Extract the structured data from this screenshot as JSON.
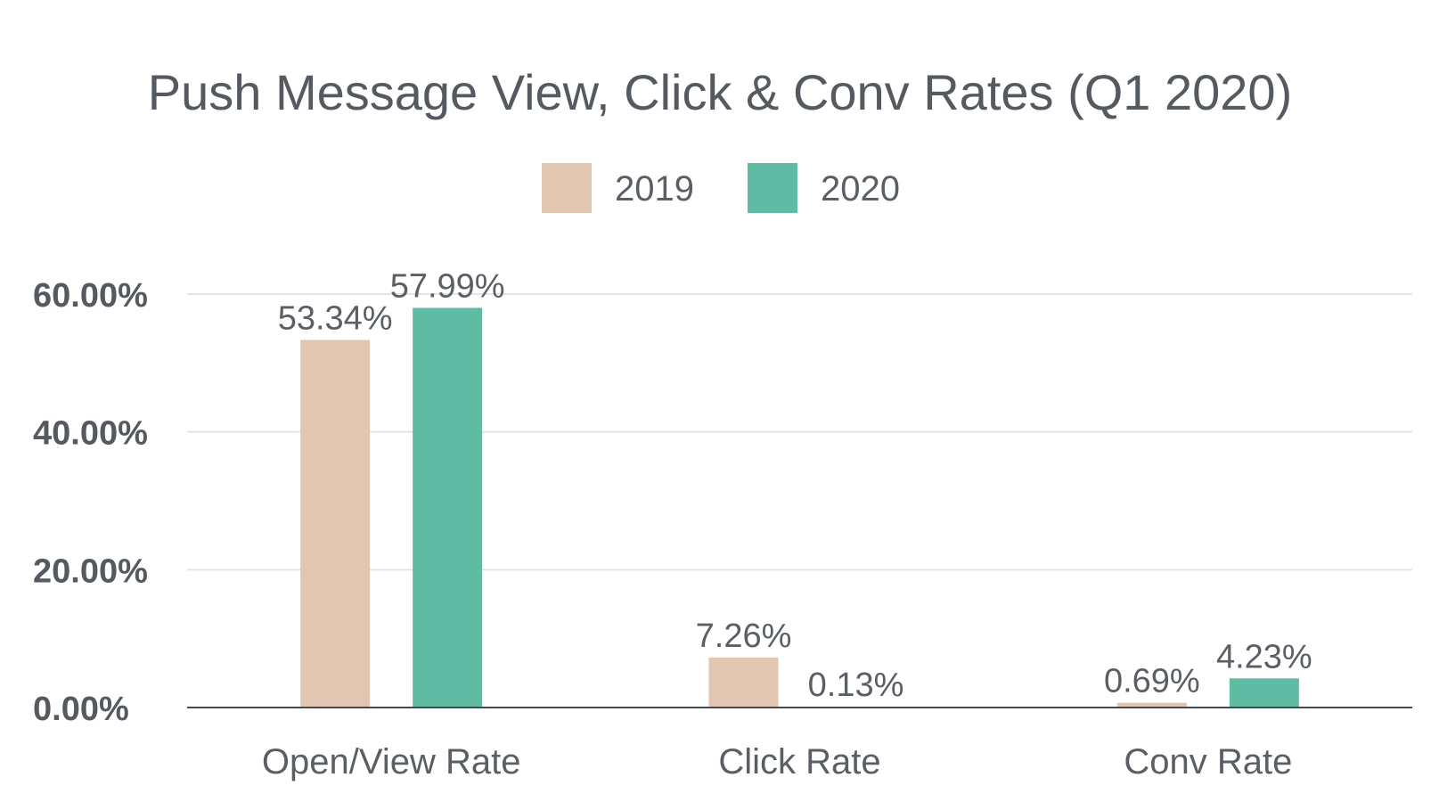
{
  "chart_data": {
    "type": "bar",
    "title": "Push Message View, Click & Conv Rates (Q1 2020)",
    "categories": [
      "Open/View Rate",
      "Click Rate",
      "Conv Rate"
    ],
    "series": [
      {
        "name": "2019",
        "color": "#e2c6b1",
        "values": [
          53.34,
          7.26,
          0.69
        ],
        "labels": [
          "53.34%",
          "7.26%",
          "0.69%"
        ]
      },
      {
        "name": "2020",
        "color": "#5fbba2",
        "values": [
          57.99,
          0.13,
          4.23
        ],
        "labels": [
          "57.99%",
          "0.13%",
          "4.23%"
        ]
      }
    ],
    "y_ticks": [
      0,
      20,
      40,
      60
    ],
    "y_tick_labels": [
      "0.00%",
      "20.00%",
      "40.00%",
      "60.00%"
    ],
    "ylim": [
      0,
      60
    ],
    "grid": true,
    "legend_position": "top-center"
  }
}
